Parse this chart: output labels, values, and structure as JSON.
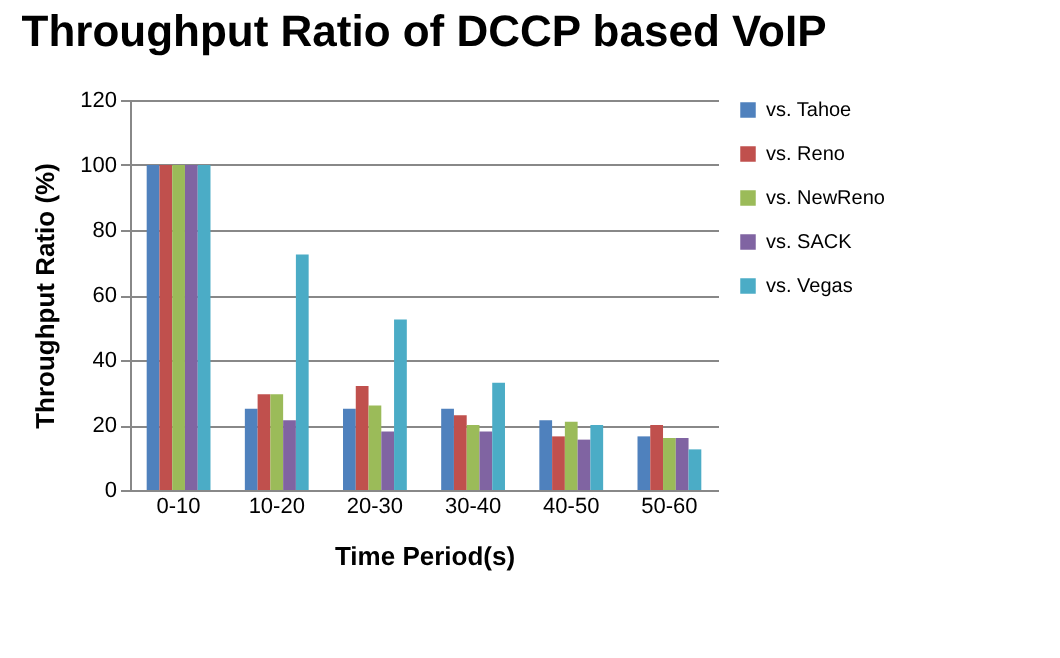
{
  "chart_data": {
    "type": "bar",
    "title": "Throughput Ratio of DCCP based VoIP",
    "xlabel": "Time Period(s)",
    "ylabel": "Throughput Ratio (%)",
    "categories": [
      "0-10",
      "10-20",
      "20-30",
      "30-40",
      "40-50",
      "50-60"
    ],
    "series": [
      {
        "name": "vs. Tahoe",
        "color": "#4f81bd",
        "values": [
          100,
          25,
          25,
          25,
          21.5,
          16.5
        ]
      },
      {
        "name": "vs. Reno",
        "color": "#c0504d",
        "values": [
          100,
          29.5,
          32,
          23,
          16.5,
          20
        ]
      },
      {
        "name": "vs. NewReno",
        "color": "#9bbb59",
        "values": [
          100,
          29.5,
          26,
          20,
          21,
          16
        ]
      },
      {
        "name": "vs. SACK",
        "color": "#8064a2",
        "values": [
          100,
          21.5,
          18,
          18,
          15.5,
          16
        ]
      },
      {
        "name": "vs. Vegas",
        "color": "#4bacc6",
        "values": [
          100,
          72.5,
          52.5,
          33,
          20,
          12.5
        ]
      }
    ],
    "ylim": [
      0,
      120
    ],
    "yticks": [
      0,
      20,
      40,
      60,
      80,
      100,
      120
    ],
    "grid": "y",
    "legend": "right"
  }
}
